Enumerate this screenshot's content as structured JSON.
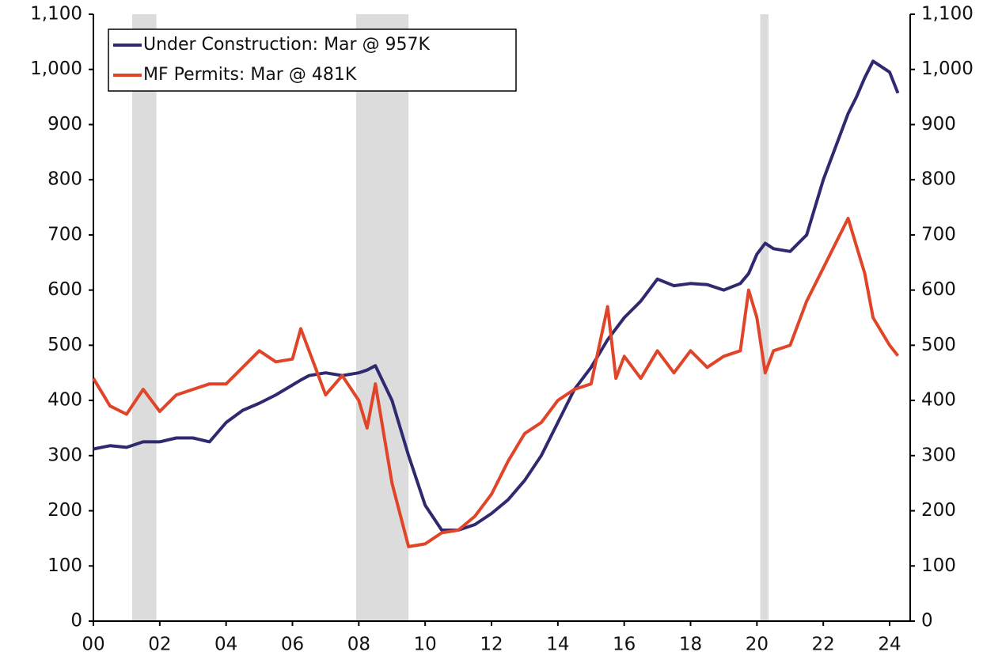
{
  "chart_data": {
    "type": "line",
    "x": [
      0,
      0.5,
      1,
      1.5,
      2,
      2.5,
      3,
      3.5,
      4,
      4.5,
      5,
      5.5,
      6,
      6.25,
      6.5,
      7,
      7.5,
      8,
      8.25,
      8.5,
      9,
      9.5,
      10,
      10.5,
      11,
      11.5,
      12,
      12.5,
      13,
      13.5,
      14,
      14.5,
      15,
      15.5,
      15.75,
      16,
      16.5,
      17,
      17.5,
      18,
      18.5,
      19,
      19.5,
      19.75,
      20,
      20.25,
      20.5,
      21,
      21.5,
      22,
      22.5,
      22.75,
      23,
      23.25,
      23.5,
      24,
      24.25
    ],
    "series": [
      {
        "name": "Under Construction: Mar @ 957K",
        "color": "#2f2a70",
        "values": [
          312,
          318,
          315,
          325,
          325,
          332,
          332,
          325,
          360,
          382,
          395,
          410,
          428,
          437,
          445,
          450,
          445,
          450,
          455,
          463,
          400,
          300,
          210,
          165,
          165,
          175,
          195,
          220,
          255,
          300,
          360,
          420,
          460,
          510,
          530,
          550,
          580,
          620,
          608,
          612,
          610,
          600,
          612,
          630,
          665,
          685,
          675,
          670,
          700,
          800,
          880,
          920,
          950,
          985,
          1015,
          995,
          957
        ]
      },
      {
        "name": "MF Permits: Mar @ 481K",
        "color": "#e0452a",
        "values": [
          440,
          390,
          375,
          420,
          380,
          410,
          420,
          430,
          430,
          460,
          490,
          470,
          475,
          530,
          490,
          410,
          445,
          400,
          350,
          430,
          250,
          135,
          140,
          160,
          165,
          190,
          230,
          290,
          340,
          360,
          400,
          420,
          430,
          570,
          440,
          480,
          440,
          490,
          450,
          490,
          460,
          480,
          490,
          600,
          550,
          450,
          490,
          500,
          580,
          640,
          700,
          730,
          680,
          630,
          550,
          500,
          481
        ]
      }
    ],
    "shaded_regions": [
      [
        1.17,
        1.9
      ],
      [
        7.92,
        9.5
      ],
      [
        20.1,
        20.35
      ]
    ],
    "shade_color": "#dcdcdc",
    "xlim": [
      0,
      24.62
    ],
    "xticks": [
      {
        "value": 0,
        "label": "00"
      },
      {
        "value": 2,
        "label": "02"
      },
      {
        "value": 4,
        "label": "04"
      },
      {
        "value": 6,
        "label": "06"
      },
      {
        "value": 8,
        "label": "08"
      },
      10,
      12,
      14,
      16,
      18,
      20,
      22,
      24
    ],
    "ylim": [
      0,
      1100
    ],
    "yticks": [
      0,
      100,
      200,
      300,
      400,
      500,
      600,
      700,
      800,
      900,
      {
        "value": 1000,
        "label": "1,000"
      },
      {
        "value": 1100,
        "label": "1,100"
      }
    ],
    "y2lim": [
      0,
      1100
    ],
    "y2ticks": [
      0,
      100,
      200,
      300,
      400,
      500,
      600,
      700,
      800,
      900,
      {
        "value": 1000,
        "label": "1,000"
      },
      {
        "value": 1100,
        "label": "1,100"
      }
    ],
    "legend": "upper left"
  }
}
